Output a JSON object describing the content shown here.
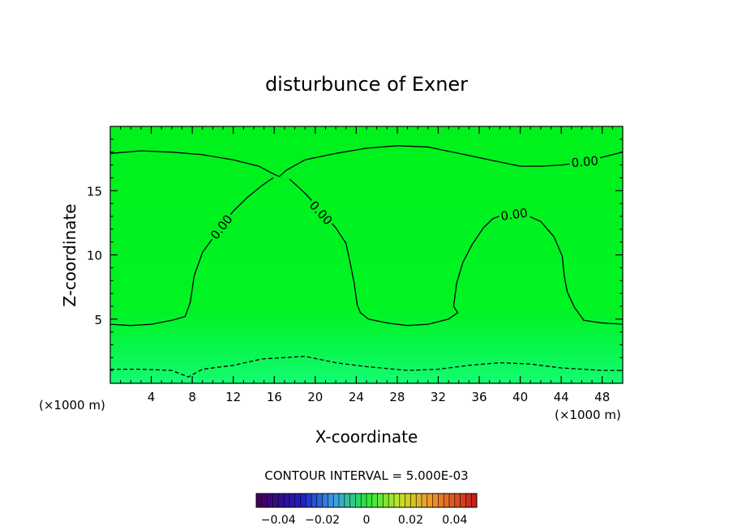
{
  "chart_data": {
    "type": "contour",
    "title": "disturbunce of Exner",
    "xlabel": "X-coordinate",
    "ylabel": "Z-coordinate",
    "x_unit": "(×1000 m)",
    "z_unit": "(×1000 m)",
    "xlim": [
      0,
      50
    ],
    "ylim": [
      0,
      20
    ],
    "x_ticks": [
      4,
      8,
      12,
      16,
      20,
      24,
      28,
      32,
      36,
      40,
      44,
      48
    ],
    "y_ticks": [
      5,
      10,
      15
    ],
    "contour_interval_text": "CONTOUR INTERVAL = 5.000E-03",
    "contour_labels": [
      "0.00",
      "0.00",
      "0.00",
      "0.00"
    ],
    "colorbar": {
      "range": [
        -0.05,
        0.05
      ],
      "tick_values": [
        -0.04,
        -0.02,
        0,
        0.02,
        0.04
      ],
      "tick_labels": [
        "−0.04",
        "−0.02",
        "0",
        "0.02",
        "0.04"
      ]
    },
    "zero_contours": [
      {
        "name": "top",
        "points": [
          [
            0,
            17.9
          ],
          [
            3,
            18.1
          ],
          [
            6,
            18.0
          ],
          [
            9,
            17.8
          ],
          [
            12,
            17.4
          ],
          [
            14.5,
            16.9
          ],
          [
            15.9,
            16.3
          ],
          [
            16.5,
            16.1
          ],
          [
            17.2,
            16.6
          ],
          [
            19,
            17.4
          ],
          [
            22,
            17.9
          ],
          [
            25,
            18.3
          ],
          [
            28,
            18.5
          ],
          [
            31,
            18.4
          ],
          [
            34,
            17.9
          ],
          [
            37,
            17.4
          ],
          [
            40,
            16.9
          ],
          [
            42,
            16.9
          ],
          [
            44,
            17.0
          ],
          [
            46,
            17.2
          ],
          [
            48,
            17.6
          ],
          [
            50,
            18.0
          ]
        ]
      },
      {
        "name": "left-dome",
        "points": [
          [
            0,
            4.6
          ],
          [
            2,
            4.5
          ],
          [
            4,
            4.6
          ],
          [
            6,
            4.9
          ],
          [
            7.3,
            5.2
          ],
          [
            7.8,
            6.3
          ],
          [
            8.2,
            8.4
          ],
          [
            9,
            10.2
          ],
          [
            10.1,
            11.4
          ],
          [
            11,
            12.4
          ],
          [
            12,
            13.4
          ],
          [
            13.4,
            14.5
          ],
          [
            14.8,
            15.4
          ],
          [
            15.9,
            16.0
          ]
        ]
      },
      {
        "name": "center-trough",
        "points": [
          [
            17.5,
            15.9
          ],
          [
            19,
            14.8
          ],
          [
            20.6,
            13.4
          ],
          [
            22,
            12.1
          ],
          [
            23,
            10.9
          ],
          [
            23.4,
            9.4
          ],
          [
            23.8,
            7.8
          ],
          [
            24.1,
            6.1
          ],
          [
            24.4,
            5.5
          ],
          [
            25.2,
            5.0
          ],
          [
            27,
            4.7
          ],
          [
            29,
            4.5
          ],
          [
            31,
            4.6
          ],
          [
            33,
            5.0
          ],
          [
            33.9,
            5.5
          ],
          [
            33.5,
            6.0
          ],
          [
            33.8,
            7.8
          ],
          [
            34.4,
            9.4
          ],
          [
            35.3,
            10.8
          ],
          [
            36.4,
            12.1
          ],
          [
            37.3,
            12.8
          ],
          [
            38.5,
            13.2
          ],
          [
            40,
            13.3
          ],
          [
            42,
            12.6
          ],
          [
            43.3,
            11.4
          ],
          [
            44.1,
            9.9
          ],
          [
            44.3,
            8.3
          ],
          [
            44.6,
            7.1
          ],
          [
            45.3,
            5.9
          ],
          [
            46.2,
            4.9
          ],
          [
            48,
            4.7
          ],
          [
            50,
            4.6
          ]
        ]
      },
      {
        "name": "lower-dashed",
        "style": "dashed",
        "points": [
          [
            0,
            1.1
          ],
          [
            3,
            1.1
          ],
          [
            6,
            1.0
          ],
          [
            7.6,
            0.5
          ],
          [
            9,
            1.1
          ],
          [
            12,
            1.4
          ],
          [
            14.8,
            1.9
          ],
          [
            17,
            2.0
          ],
          [
            19,
            2.1
          ],
          [
            22,
            1.6
          ],
          [
            25,
            1.3
          ],
          [
            29,
            1.0
          ],
          [
            32,
            1.1
          ],
          [
            35,
            1.4
          ],
          [
            38,
            1.6
          ],
          [
            41,
            1.5
          ],
          [
            44,
            1.2
          ],
          [
            48,
            1.0
          ],
          [
            50,
            1.0
          ]
        ]
      }
    ],
    "field_colors": {
      "background": "#00f51e",
      "near_surface": "#10fb6a"
    }
  }
}
